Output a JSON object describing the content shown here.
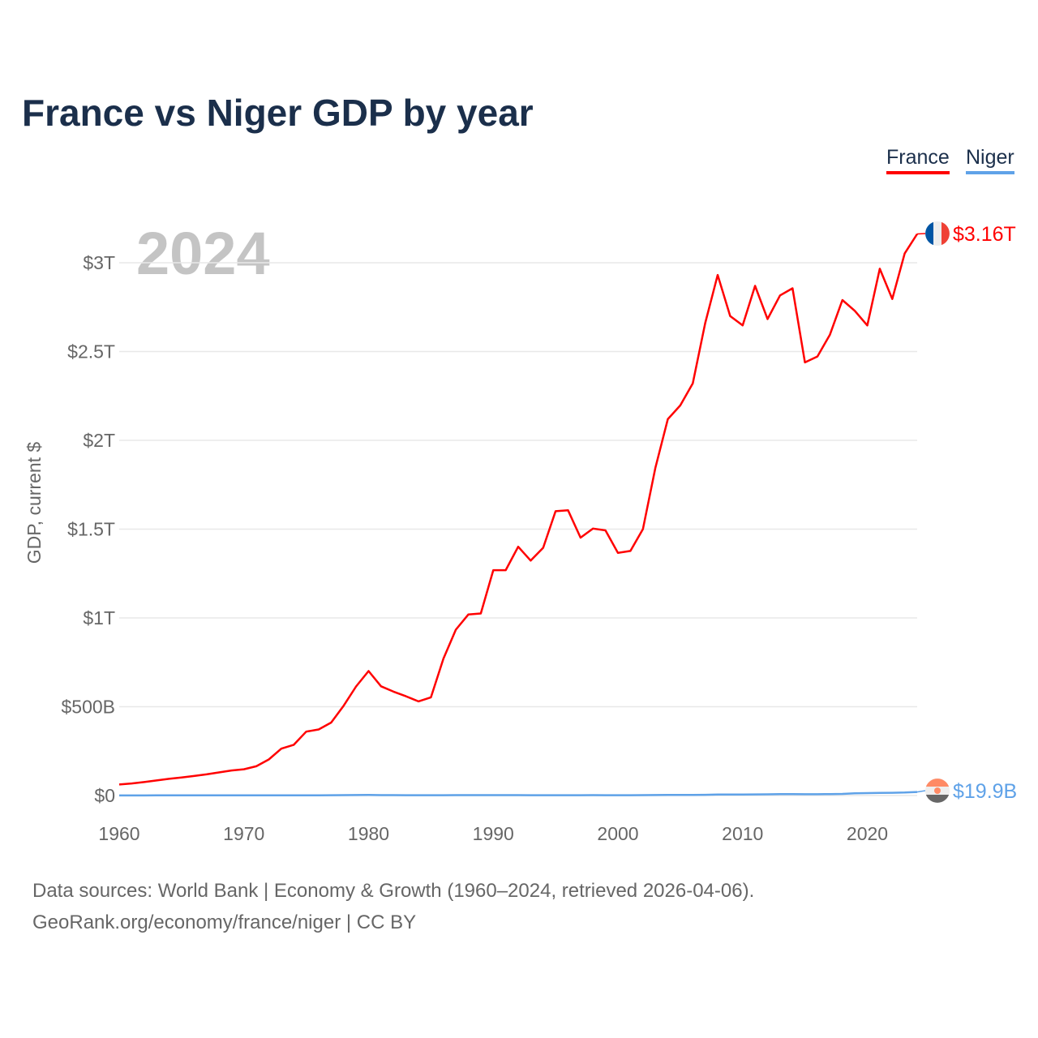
{
  "title": "France vs Niger GDP by year",
  "year_label": "2024",
  "footer": {
    "line1": "Data sources: World Bank | Economy & Growth (1960–2024, retrieved 2026-04-06).",
    "line2": "GeoRank.org/economy/france/niger | CC BY"
  },
  "chart_data": {
    "type": "line",
    "title": "France vs Niger GDP by year",
    "xlabel": "",
    "ylabel": "GDP, current $",
    "xlim": [
      1960,
      2024
    ],
    "ylim": [
      0,
      3300
    ],
    "units": "billions USD",
    "grid": true,
    "legend_placement": "top-right",
    "x_ticks": [
      1960,
      1970,
      1980,
      1990,
      2000,
      2010,
      2020
    ],
    "x_tick_labels": [
      "1960",
      "1970",
      "1980",
      "1990",
      "2000",
      "2010",
      "2020"
    ],
    "y_ticks": [
      0,
      500,
      1000,
      1500,
      2000,
      2500,
      3000
    ],
    "y_tick_labels": [
      "$0",
      "$500B",
      "$1T",
      "$1.5T",
      "$2T",
      "$2.5T",
      "$3T"
    ],
    "x": [
      1960,
      1961,
      1962,
      1963,
      1964,
      1965,
      1966,
      1967,
      1968,
      1969,
      1970,
      1971,
      1972,
      1973,
      1974,
      1975,
      1976,
      1977,
      1978,
      1979,
      1980,
      1981,
      1982,
      1983,
      1984,
      1985,
      1986,
      1987,
      1988,
      1989,
      1990,
      1991,
      1992,
      1993,
      1994,
      1995,
      1996,
      1997,
      1998,
      1999,
      2000,
      2001,
      2002,
      2003,
      2004,
      2005,
      2006,
      2007,
      2008,
      2009,
      2010,
      2011,
      2012,
      2013,
      2014,
      2015,
      2016,
      2017,
      2018,
      2019,
      2020,
      2021,
      2022,
      2023,
      2024
    ],
    "series": [
      {
        "name": "France",
        "color": "#ff0000",
        "end_label": "$3.16T",
        "values": [
          62,
          68,
          76,
          85,
          94,
          102,
          110,
          119,
          130,
          141,
          148,
          165,
          203,
          264,
          286,
          360,
          372,
          411,
          506,
          614,
          701,
          615,
          585,
          559,
          530,
          553,
          771,
          934,
          1019,
          1025,
          1269,
          1269,
          1401,
          1323,
          1395,
          1601,
          1606,
          1452,
          1503,
          1493,
          1366,
          1377,
          1500,
          1844,
          2119,
          2197,
          2321,
          2660,
          2931,
          2700,
          2647,
          2870,
          2683,
          2816,
          2856,
          2439,
          2472,
          2595,
          2790,
          2729,
          2647,
          2966,
          2796,
          3052,
          3162
        ]
      },
      {
        "name": "Niger",
        "color": "#5fa2e8",
        "end_label": "$19.9B",
        "values": [
          0.5,
          0.6,
          0.6,
          0.7,
          0.7,
          0.7,
          0.8,
          0.8,
          0.8,
          0.8,
          0.8,
          0.9,
          1.0,
          1.0,
          1.1,
          1.4,
          1.4,
          1.7,
          2.2,
          2.6,
          3.0,
          2.5,
          2.2,
          1.9,
          1.6,
          1.6,
          2.0,
          2.3,
          2.3,
          2.2,
          2.5,
          2.3,
          2.3,
          1.6,
          1.6,
          1.9,
          2.0,
          1.9,
          2.1,
          2.0,
          1.8,
          1.9,
          2.2,
          2.7,
          3.1,
          3.4,
          3.6,
          4.3,
          5.4,
          5.4,
          5.7,
          6.4,
          7.0,
          7.7,
          8.2,
          7.3,
          7.5,
          8.1,
          9.2,
          12.9,
          13.7,
          14.9,
          15.4,
          17.0,
          19.9
        ]
      }
    ]
  }
}
